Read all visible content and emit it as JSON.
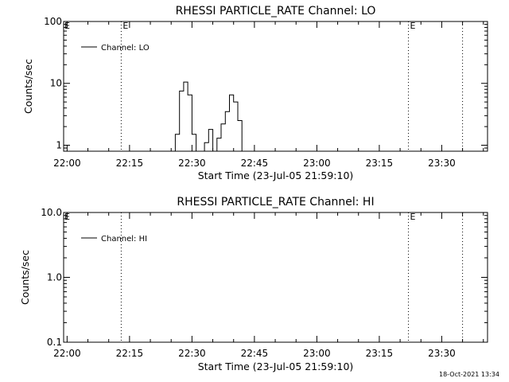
{
  "chart_data": [
    {
      "type": "line",
      "title": "RHESSI PARTICLE_RATE Channel: LO",
      "xlabel": "Start Time (23-Jul-05 21:59:10)",
      "ylabel": "Counts/sec",
      "y_scale": "log",
      "ylim": [
        0.8,
        100
      ],
      "xlim": [
        "22:00",
        "23:41"
      ],
      "x_tick_labels": [
        "22:00",
        "22:15",
        "22:30",
        "22:45",
        "23:00",
        "23:15",
        "23:30"
      ],
      "y_tick_labels": [
        "1",
        "10",
        "100"
      ],
      "y_ticks": [
        1,
        10,
        100
      ],
      "legend": {
        "position": "top-left",
        "entries": [
          "Channel: LO"
        ]
      },
      "markers": [
        {
          "time": "22:13",
          "label": "E"
        },
        {
          "time": "23:22",
          "label": "E"
        },
        {
          "time": "23:35",
          "label": ""
        }
      ],
      "series": [
        {
          "name": "Channel: LO",
          "x": [
            "22:25",
            "22:26",
            "22:27",
            "22:28",
            "22:29",
            "22:30",
            "22:31",
            "22:32",
            "22:33",
            "22:34",
            "22:35",
            "22:36",
            "22:37",
            "22:38",
            "22:39",
            "22:40",
            "22:41",
            "22:42",
            "22:43"
          ],
          "values": [
            0.8,
            1.5,
            7.5,
            10.5,
            6.5,
            1.5,
            0.8,
            0.8,
            1.1,
            1.8,
            0.8,
            1.3,
            2.2,
            3.5,
            6.5,
            5.0,
            2.5,
            0.8,
            0.8
          ]
        }
      ]
    },
    {
      "type": "line",
      "title": "RHESSI PARTICLE_RATE Channel: HI",
      "xlabel": "Start Time (23-Jul-05 21:59:10)",
      "ylabel": "Counts/sec",
      "y_scale": "log",
      "ylim": [
        0.1,
        10
      ],
      "xlim": [
        "22:00",
        "23:41"
      ],
      "x_tick_labels": [
        "22:00",
        "22:15",
        "22:30",
        "22:45",
        "23:00",
        "23:15",
        "23:30"
      ],
      "y_tick_labels": [
        "0.1",
        "1.0",
        "10.0"
      ],
      "y_ticks": [
        0.1,
        1,
        10
      ],
      "legend": {
        "position": "top-left",
        "entries": [
          "Channel: HI"
        ]
      },
      "markers": [
        {
          "time": "22:13",
          "label": ""
        },
        {
          "time": "23:22",
          "label": "E"
        },
        {
          "time": "23:35",
          "label": ""
        }
      ],
      "series": [
        {
          "name": "Channel: HI",
          "x": [],
          "values": []
        }
      ]
    }
  ],
  "left_edge_labels": [
    "E",
    "E"
  ],
  "footer": {
    "timestamp": "18-Oct-2021 13:34"
  }
}
